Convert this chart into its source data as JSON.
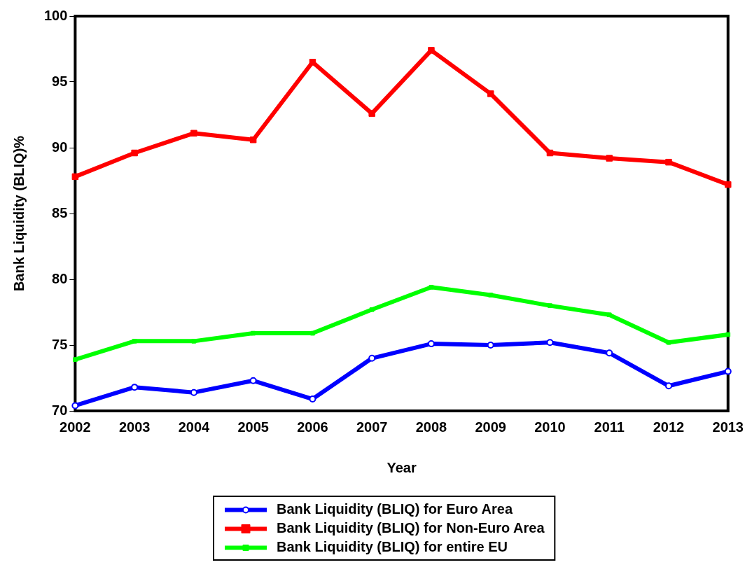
{
  "chart_data": {
    "type": "line",
    "xlabel": "Year",
    "ylabel": "Bank Liquidity (BLIQ)%",
    "categories": [
      "2002",
      "2003",
      "2004",
      "2005",
      "2006",
      "2007",
      "2008",
      "2009",
      "2010",
      "2011",
      "2012",
      "2013"
    ],
    "series": [
      {
        "name": "Bank Liquidity (BLIQ) for Euro Area",
        "color": "#0000ff",
        "marker": "circle",
        "values": [
          70.4,
          71.8,
          71.4,
          72.3,
          70.9,
          74.0,
          75.1,
          75.0,
          75.2,
          74.4,
          71.9,
          73.0
        ]
      },
      {
        "name": "Bank Liquidity (BLIQ) for Non-Euro Area",
        "color": "#ff0000",
        "marker": "square",
        "values": [
          87.8,
          89.6,
          91.1,
          90.6,
          96.5,
          92.6,
          97.4,
          94.1,
          89.6,
          89.2,
          88.9,
          87.2
        ]
      },
      {
        "name": "Bank Liquidity (BLIQ) for entire EU",
        "color": "#00ff00",
        "marker": "square",
        "values": [
          73.9,
          75.3,
          75.3,
          75.9,
          75.9,
          77.7,
          79.4,
          78.8,
          78.0,
          77.3,
          75.2,
          75.8
        ]
      }
    ],
    "ylim": [
      70,
      100
    ],
    "yticks": [
      70,
      75,
      80,
      85,
      90,
      95,
      100
    ],
    "grid": false,
    "legend": "bottom",
    "line_style": "solid"
  }
}
